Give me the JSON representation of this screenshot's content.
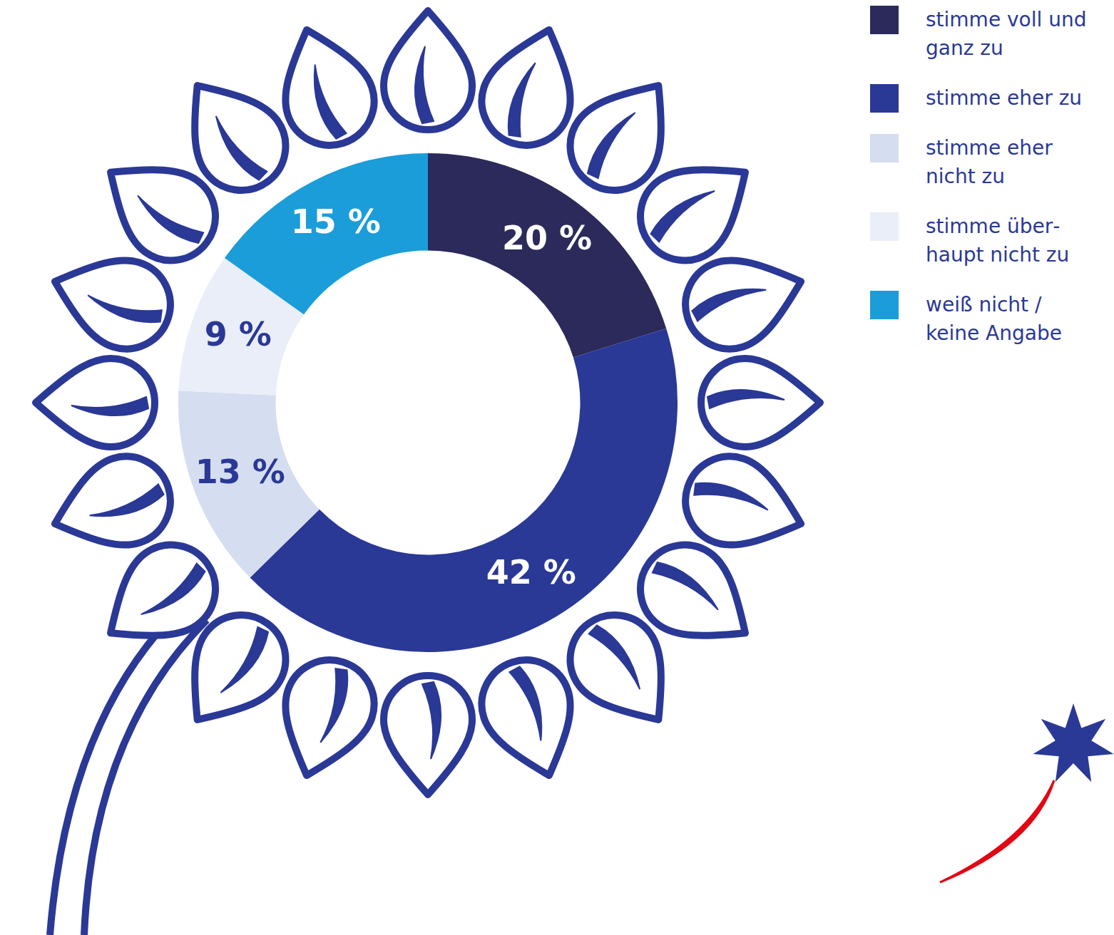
{
  "chart_data": {
    "type": "doughnut",
    "categories": [
      "stimme voll und ganz zu",
      "stimme eher zu",
      "stimme eher nicht zu",
      "stimme über­haupt nicht zu",
      "weiß nicht / keine Angabe"
    ],
    "values": [
      20,
      42,
      13,
      9,
      15
    ],
    "value_labels": [
      "20 %",
      "42 %",
      "13 %",
      "9 %",
      "15 %"
    ],
    "colors": [
      "#2b2a5b",
      "#2a3896",
      "#d5ddf0",
      "#e9eef8",
      "#1b9dd9"
    ],
    "data_labels": true,
    "legend": "right"
  }
}
